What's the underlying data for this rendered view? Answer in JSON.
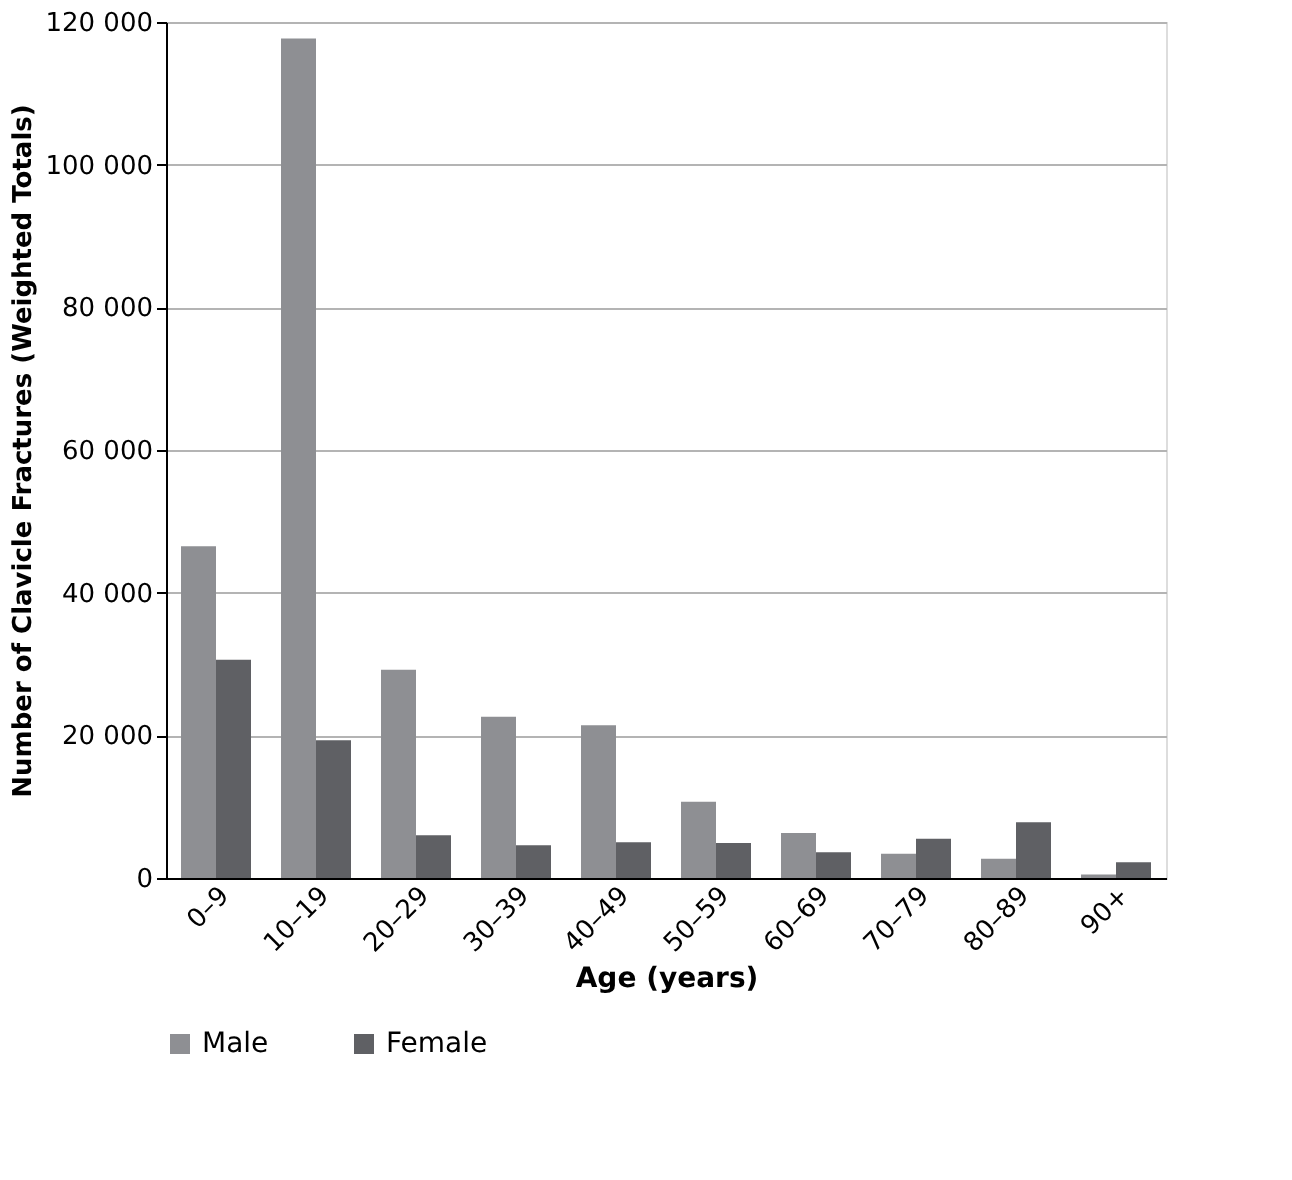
{
  "chart_data": {
    "type": "bar",
    "xlabel": "Age (years)",
    "ylabel": "Number of Clavicle Fractures (Weighted Totals)",
    "categories": [
      "0–9",
      "10–19",
      "20–29",
      "30–39",
      "40–49",
      "50–59",
      "60–69",
      "70–79",
      "80–89",
      "90+"
    ],
    "series": [
      {
        "name": "Male",
        "color": "#8e8f93",
        "values": [
          46500,
          117700,
          29200,
          22600,
          21400,
          10700,
          6300,
          3400,
          2700,
          500
        ]
      },
      {
        "name": "Female",
        "color": "#5f6064",
        "values": [
          30600,
          19300,
          6000,
          4600,
          5000,
          4900,
          3600,
          5500,
          7800,
          2200
        ]
      }
    ],
    "ylim": [
      0,
      120000
    ],
    "yticks": [
      {
        "value": 0,
        "label": "0"
      },
      {
        "value": 20000,
        "label": "20 000"
      },
      {
        "value": 40000,
        "label": "40 000"
      },
      {
        "value": 60000,
        "label": "60 000"
      },
      {
        "value": 80000,
        "label": "80 000"
      },
      {
        "value": 100000,
        "label": "100 000"
      },
      {
        "value": 120000,
        "label": "120 000"
      }
    ],
    "grid": "y",
    "legend": "bottom"
  }
}
